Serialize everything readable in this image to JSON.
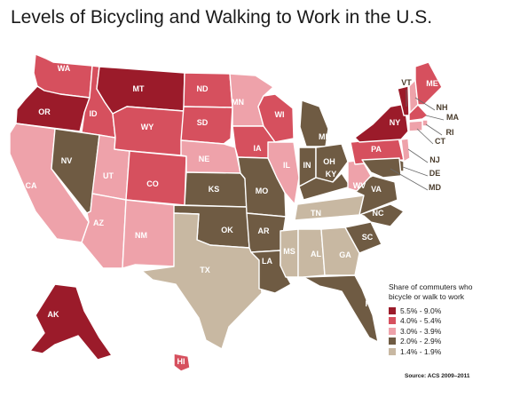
{
  "title": "Levels of Bicycling and Walking to Work in the U.S.",
  "legend": {
    "title_line1": "Share of commuters who",
    "title_line2": "bicycle or walk to work",
    "items": [
      {
        "label": "5.5% - 9.0%",
        "color": "#9b1b2a"
      },
      {
        "label": "4.0% - 5.4%",
        "color": "#d6505e"
      },
      {
        "label": "3.0% - 3.9%",
        "color": "#eea2aa"
      },
      {
        "label": "2.0% - 2.9%",
        "color": "#6f5b43"
      },
      {
        "label": "1.4% - 1.9%",
        "color": "#c8b8a2"
      }
    ]
  },
  "source": "Source: ACS 2009–2011",
  "states": [
    {
      "abbr": "WA",
      "bin": 1
    },
    {
      "abbr": "OR",
      "bin": 0
    },
    {
      "abbr": "CA",
      "bin": 2
    },
    {
      "abbr": "ID",
      "bin": 1
    },
    {
      "abbr": "NV",
      "bin": 3
    },
    {
      "abbr": "UT",
      "bin": 2
    },
    {
      "abbr": "AZ",
      "bin": 2
    },
    {
      "abbr": "MT",
      "bin": 0
    },
    {
      "abbr": "WY",
      "bin": 1
    },
    {
      "abbr": "CO",
      "bin": 1
    },
    {
      "abbr": "NM",
      "bin": 2
    },
    {
      "abbr": "ND",
      "bin": 1
    },
    {
      "abbr": "SD",
      "bin": 1
    },
    {
      "abbr": "NE",
      "bin": 2
    },
    {
      "abbr": "KS",
      "bin": 3
    },
    {
      "abbr": "OK",
      "bin": 3
    },
    {
      "abbr": "TX",
      "bin": 4
    },
    {
      "abbr": "MN",
      "bin": 2
    },
    {
      "abbr": "IA",
      "bin": 1
    },
    {
      "abbr": "MO",
      "bin": 3
    },
    {
      "abbr": "AR",
      "bin": 3
    },
    {
      "abbr": "LA",
      "bin": 3
    },
    {
      "abbr": "WI",
      "bin": 1
    },
    {
      "abbr": "IL",
      "bin": 2
    },
    {
      "abbr": "MI",
      "bin": 3
    },
    {
      "abbr": "IN",
      "bin": 3
    },
    {
      "abbr": "OH",
      "bin": 3
    },
    {
      "abbr": "KY",
      "bin": 3
    },
    {
      "abbr": "TN",
      "bin": 4
    },
    {
      "abbr": "MS",
      "bin": 4
    },
    {
      "abbr": "AL",
      "bin": 4
    },
    {
      "abbr": "GA",
      "bin": 4
    },
    {
      "abbr": "FL",
      "bin": 3
    },
    {
      "abbr": "SC",
      "bin": 3
    },
    {
      "abbr": "NC",
      "bin": 3
    },
    {
      "abbr": "VA",
      "bin": 3
    },
    {
      "abbr": "WV",
      "bin": 2
    },
    {
      "abbr": "PA",
      "bin": 1
    },
    {
      "abbr": "NY",
      "bin": 0
    },
    {
      "abbr": "VT",
      "bin": 0
    },
    {
      "abbr": "NH",
      "bin": 2
    },
    {
      "abbr": "ME",
      "bin": 1
    },
    {
      "abbr": "MA",
      "bin": 1
    },
    {
      "abbr": "RI",
      "bin": 2
    },
    {
      "abbr": "CT",
      "bin": 2
    },
    {
      "abbr": "NJ",
      "bin": 2
    },
    {
      "abbr": "DE",
      "bin": 3
    },
    {
      "abbr": "MD",
      "bin": 3
    },
    {
      "abbr": "AK",
      "bin": 0
    },
    {
      "abbr": "HI",
      "bin": 1
    }
  ]
}
